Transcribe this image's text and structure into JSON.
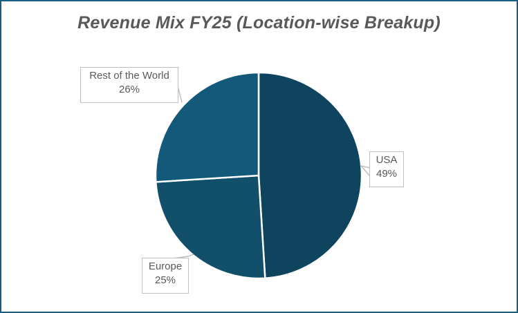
{
  "chart_data": {
    "type": "pie",
    "title": "Revenue Mix FY25 (Location-wise Breakup)",
    "categories": [
      "USA",
      "Europe",
      "Rest of the World"
    ],
    "values": [
      49,
      25,
      26
    ],
    "value_labels": [
      "49%",
      "25%",
      "26%"
    ],
    "colors": [
      "#0e445e",
      "#124f6b",
      "#135a7a"
    ],
    "start_angle": "12 o'clock",
    "direction": "clockwise",
    "legend": "none (callout data labels)"
  },
  "labels": {
    "usa": {
      "name": "USA",
      "pct": "49%"
    },
    "europe": {
      "name": "Europe",
      "pct": "25%"
    },
    "row": {
      "name": "Rest of the World",
      "pct": "26%"
    }
  },
  "colors": {
    "border": "#156082",
    "text": "#595959",
    "callout_border": "#bfbfbf"
  }
}
